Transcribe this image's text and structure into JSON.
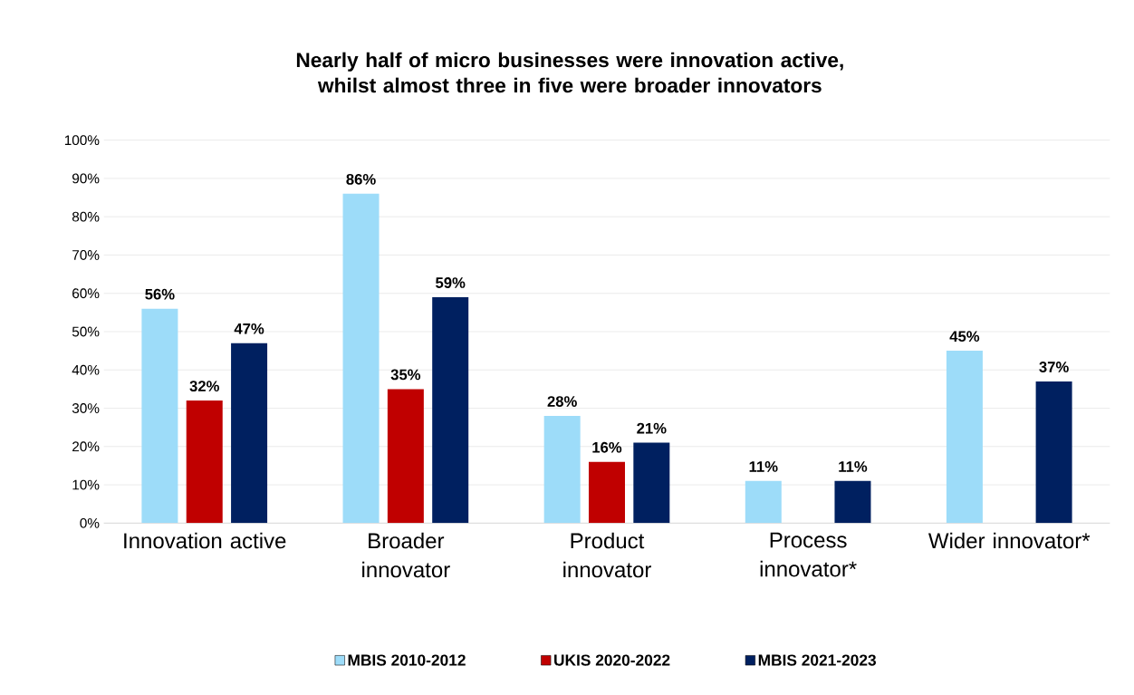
{
  "chart_data": {
    "type": "bar",
    "title": "Nearly half of micro businesses were innovation active, whilst almost three in five were broader innovators",
    "categories": [
      "Innovation active",
      "Broader innovator",
      "Product innovator",
      "Process innovator*",
      "Wider innovator*"
    ],
    "series": [
      {
        "name": "MBIS 2010-2012",
        "color": "#9ddcf9",
        "values": [
          56,
          86,
          28,
          11,
          45
        ],
        "value_labels": [
          "56%",
          "86%",
          "28%",
          "11%",
          "45%"
        ]
      },
      {
        "name": "UKIS 2020-2022",
        "color": "#c00000",
        "values": [
          32,
          35,
          16,
          null,
          null
        ],
        "value_labels": [
          "32%",
          "35%",
          "16%",
          null,
          null
        ]
      },
      {
        "name": "MBIS 2021-2023",
        "color": "#002060",
        "values": [
          47,
          59,
          21,
          11,
          37
        ],
        "value_labels": [
          "47%",
          "59%",
          "21%",
          "11%",
          "37%"
        ]
      }
    ],
    "ylim": [
      0,
      100
    ],
    "yticks": [
      {
        "value": 0,
        "label": "0%"
      },
      {
        "value": 10,
        "label": "10%"
      },
      {
        "value": 20,
        "label": "20%"
      },
      {
        "value": 30,
        "label": "30%"
      },
      {
        "value": 40,
        "label": "40%"
      },
      {
        "value": 50,
        "label": "50%"
      },
      {
        "value": 60,
        "label": "60%"
      },
      {
        "value": 70,
        "label": "70%"
      },
      {
        "value": 80,
        "label": "80%"
      },
      {
        "value": 90,
        "label": "90%"
      },
      {
        "value": 100,
        "label": "100%"
      }
    ],
    "grid": "y",
    "legend": "bottom"
  }
}
